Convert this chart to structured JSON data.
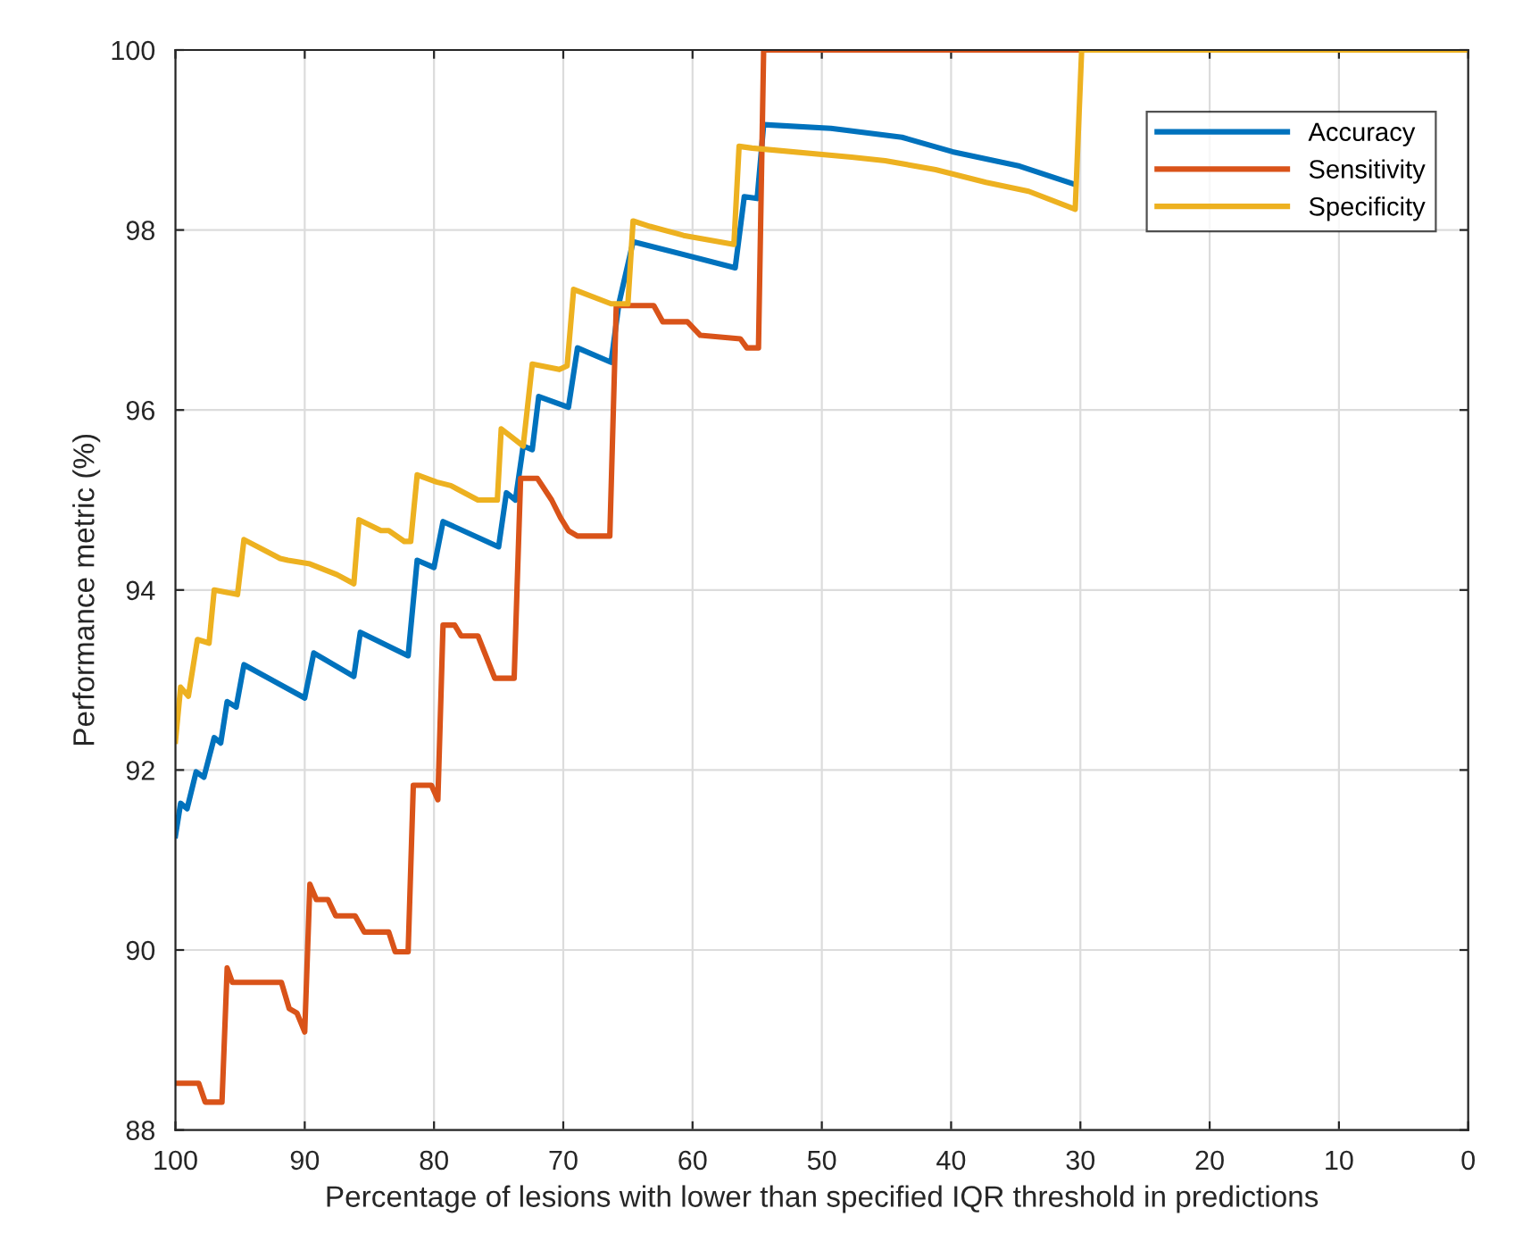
{
  "chart_data": {
    "type": "line",
    "xlabel": "Percentage of lesions with lower than specified IQR threshold in predictions",
    "ylabel": "Performance metric (%)",
    "xlim": [
      100,
      0
    ],
    "xticks": [
      100,
      90,
      80,
      70,
      60,
      50,
      40,
      30,
      20,
      10,
      0
    ],
    "ylim": [
      88,
      100
    ],
    "yticks": [
      88,
      90,
      92,
      94,
      96,
      98,
      100
    ],
    "grid": true,
    "legend": "top right",
    "line_style": "solid",
    "marker": "none",
    "series": [
      {
        "name": "Accuracy",
        "color": "#0072bd",
        "x": [
          100,
          99.6,
          99.1,
          98.4,
          97.8,
          97.0,
          96.5,
          96.0,
          95.3,
          94.7,
          90.0,
          89.3,
          86.2,
          85.7,
          82.0,
          81.3,
          80.0,
          79.3,
          75.0,
          74.4,
          73.7,
          73.1,
          72.4,
          71.9,
          69.6,
          68.9,
          66.3,
          65.7,
          64.6,
          56.7,
          56.0,
          55.0,
          54.5,
          49.3,
          43.8,
          39.9,
          34.7,
          30.5
        ],
        "values": [
          91.27,
          91.63,
          91.57,
          91.98,
          91.92,
          92.36,
          92.3,
          92.76,
          92.7,
          93.17,
          92.8,
          93.3,
          93.04,
          93.53,
          93.27,
          94.33,
          94.25,
          94.76,
          94.48,
          95.08,
          95.0,
          95.6,
          95.56,
          96.15,
          96.03,
          96.69,
          96.53,
          97.18,
          97.87,
          97.58,
          98.37,
          98.35,
          99.17,
          99.13,
          99.03,
          98.87,
          98.71,
          98.51
        ]
      },
      {
        "name": "Sensitivity",
        "color": "#d95319",
        "x": [
          100,
          98.2,
          97.7,
          96.4,
          96.0,
          95.6,
          91.8,
          91.2,
          90.6,
          90.0,
          89.6,
          89.1,
          88.2,
          87.6,
          86.1,
          85.4,
          83.5,
          83.0,
          82.0,
          81.6,
          80.2,
          79.7,
          79.3,
          78.4,
          77.9,
          76.6,
          75.3,
          73.8,
          73.3,
          72.0,
          70.9,
          70.2,
          69.6,
          68.9,
          66.4,
          65.9,
          63.0,
          62.3,
          60.4,
          59.4,
          56.3,
          55.8,
          54.9,
          54.5,
          0
        ],
        "values": [
          88.52,
          88.52,
          88.31,
          88.31,
          89.8,
          89.64,
          89.64,
          89.35,
          89.3,
          89.09,
          90.73,
          90.56,
          90.56,
          90.38,
          90.38,
          90.2,
          90.2,
          89.98,
          89.98,
          91.83,
          91.83,
          91.67,
          93.61,
          93.61,
          93.49,
          93.49,
          93.02,
          93.02,
          95.24,
          95.24,
          95.0,
          94.8,
          94.66,
          94.6,
          94.6,
          97.16,
          97.16,
          96.98,
          96.98,
          96.83,
          96.79,
          96.69,
          96.69,
          100,
          100
        ]
      },
      {
        "name": "Specificity",
        "color": "#edb120",
        "x": [
          100,
          99.6,
          99.0,
          98.3,
          97.4,
          97.0,
          95.2,
          94.7,
          91.9,
          91.3,
          89.6,
          87.5,
          86.2,
          85.8,
          84.1,
          83.5,
          82.3,
          81.8,
          81.3,
          79.8,
          78.7,
          76.6,
          75.1,
          74.8,
          73.1,
          72.4,
          70.3,
          69.7,
          69.2,
          66.3,
          65.0,
          64.6,
          63.3,
          60.7,
          56.8,
          56.4,
          55.4,
          47.7,
          45.1,
          41.2,
          37.3,
          34.0,
          30.4,
          29.9,
          0
        ],
        "values": [
          92.32,
          92.92,
          92.82,
          93.45,
          93.41,
          94.0,
          93.95,
          94.56,
          94.35,
          94.33,
          94.29,
          94.17,
          94.07,
          94.78,
          94.66,
          94.66,
          94.54,
          94.54,
          95.28,
          95.2,
          95.16,
          95.0,
          95.0,
          95.79,
          95.6,
          96.51,
          96.45,
          96.49,
          97.34,
          97.18,
          97.18,
          98.1,
          98.04,
          97.94,
          97.84,
          98.93,
          98.91,
          98.81,
          98.77,
          98.67,
          98.53,
          98.43,
          98.23,
          100,
          100
        ]
      }
    ]
  }
}
